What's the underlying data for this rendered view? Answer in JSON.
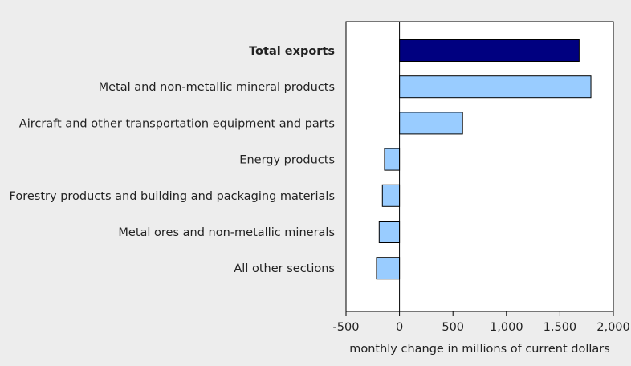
{
  "chart_data": {
    "type": "bar",
    "orientation": "horizontal",
    "categories": [
      "Total exports",
      "Metal and non-metallic mineral products",
      "Aircraft and other transportation equipment and parts",
      "Energy products",
      "Forestry products and building and packaging materials",
      "Metal ores and non-metallic minerals",
      "All other sections"
    ],
    "values": [
      1680,
      1790,
      590,
      -140,
      -160,
      -190,
      -215
    ],
    "highlight_index": 0,
    "xlabel": "monthly change in millions of current dollars",
    "ylabel": "",
    "xlim": [
      -500,
      2000
    ],
    "xticks": [
      -500,
      0,
      500,
      1000,
      1500,
      2000
    ],
    "xtick_labels": [
      "-500",
      "0",
      "500",
      "1,000",
      "1,500",
      "2,000"
    ],
    "grid": false,
    "legend": "none",
    "colors": {
      "highlight": "#000080",
      "bar": "#99ccff",
      "bar_stroke": "#000000",
      "plot_bg": "#ffffff",
      "page_bg": "#ededed"
    }
  }
}
